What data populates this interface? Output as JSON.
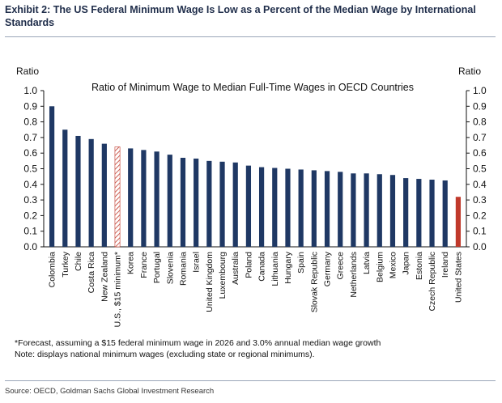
{
  "header": {
    "exhibit_title": "Exhibit 2: The US Federal Minimum Wage Is Low as a Percent of the Median Wage by International Standards"
  },
  "footer": {
    "note_forecast": "*Forecast, assuming a $15 federal minimum wage in 2026 and 3.0% annual median wage growth",
    "note_display": "Note: displays national minimum wages (excluding state or regional minimums).",
    "source": "Source: OECD, Goldman Sachs Global Investment Research"
  },
  "colors": {
    "bar": "#1f3864",
    "highlight": "#c0392b",
    "hatch": "#c0392b"
  },
  "chart_data": {
    "type": "bar",
    "title": "Ratio of Minimum Wage to Median Full-Time Wages in OECD Countries",
    "ylabel_left": "Ratio",
    "ylabel_right": "Ratio",
    "ylim": [
      0,
      1.0
    ],
    "yticks": [
      "0.0",
      "0.1",
      "0.2",
      "0.3",
      "0.4",
      "0.5",
      "0.6",
      "0.7",
      "0.8",
      "0.9",
      "1.0"
    ],
    "grid": false,
    "categories": [
      "Colombia",
      "Turkey",
      "Chile",
      "Costa Rica",
      "New Zealand",
      "U.S., $15 minimum*",
      "Korea",
      "France",
      "Portugal",
      "Slovenia",
      "Romania",
      "Israel",
      "United Kingdom",
      "Luxembourg",
      "Australia",
      "Poland",
      "Canada",
      "Lithuania",
      "Hungary",
      "Spain",
      "Slovak Republic",
      "Germany",
      "Greece",
      "Netherlands",
      "Latvia",
      "Belgium",
      "Mexico",
      "Japan",
      "Estonia",
      "Czech Republic",
      "Ireland",
      "United States"
    ],
    "values": [
      0.9,
      0.75,
      0.71,
      0.69,
      0.66,
      0.64,
      0.63,
      0.62,
      0.61,
      0.59,
      0.57,
      0.565,
      0.55,
      0.545,
      0.54,
      0.52,
      0.51,
      0.505,
      0.5,
      0.495,
      0.49,
      0.485,
      0.48,
      0.47,
      0.47,
      0.465,
      0.46,
      0.44,
      0.435,
      0.43,
      0.425,
      0.32
    ],
    "styles": [
      "solid",
      "solid",
      "solid",
      "solid",
      "solid",
      "hatched",
      "solid",
      "solid",
      "solid",
      "solid",
      "solid",
      "solid",
      "solid",
      "solid",
      "solid",
      "solid",
      "solid",
      "solid",
      "solid",
      "solid",
      "solid",
      "solid",
      "solid",
      "solid",
      "solid",
      "solid",
      "solid",
      "solid",
      "solid",
      "solid",
      "solid",
      "highlight"
    ]
  }
}
